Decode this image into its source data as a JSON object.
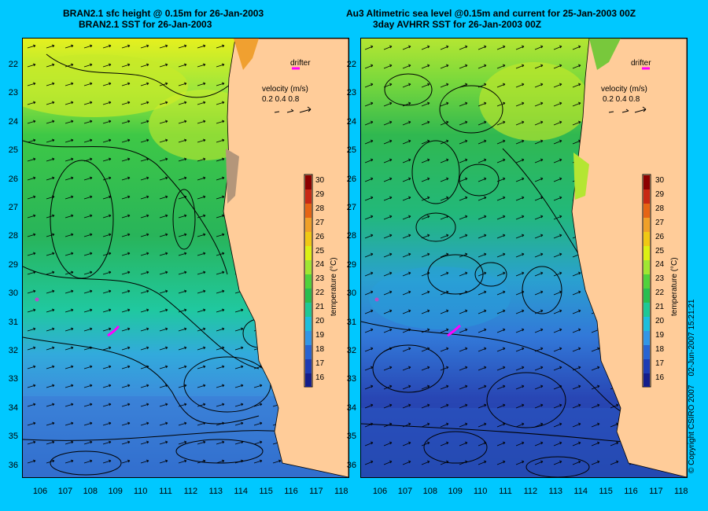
{
  "left": {
    "title_line1": "BRAN2.1 sfc height @ 0.15m for 26-Jan-2003",
    "title_line2": "BRAN2.1 SST for 26-Jan-2003"
  },
  "right": {
    "title_line1": "Au3 Altimetric sea level  @0.15m and current for 25-Jan-2003 00Z",
    "title_line2": "3day AVHRR SST for 26-Jan-2003 00Z"
  },
  "legend": {
    "drifter": "drifter",
    "velocity_title": "velocity (m/s)",
    "velocity_scale": "0.2 0.4 0.8",
    "colorbar_title": "temperature (°C)",
    "colorbar_ticks": [
      "30",
      "29",
      "28",
      "27",
      "26",
      "25",
      "24",
      "23",
      "22",
      "21",
      "20",
      "19",
      "18",
      "17",
      "16"
    ]
  },
  "axes": {
    "lat_ticks": [
      "22",
      "23",
      "24",
      "25",
      "26",
      "27",
      "28",
      "29",
      "30",
      "31",
      "32",
      "33",
      "34",
      "35",
      "36"
    ],
    "lon_ticks": [
      "106",
      "107",
      "108",
      "109",
      "110",
      "111",
      "112",
      "113",
      "114",
      "115",
      "116",
      "117",
      "118"
    ]
  },
  "colors": {
    "background": "#00c8ff",
    "land": "#ffcc99",
    "drifter": "#ff00ff"
  },
  "credit": {
    "copyright": "© Copyright CSIRO 2007",
    "timestamp": "02-Jun-2007 15:21:21"
  }
}
